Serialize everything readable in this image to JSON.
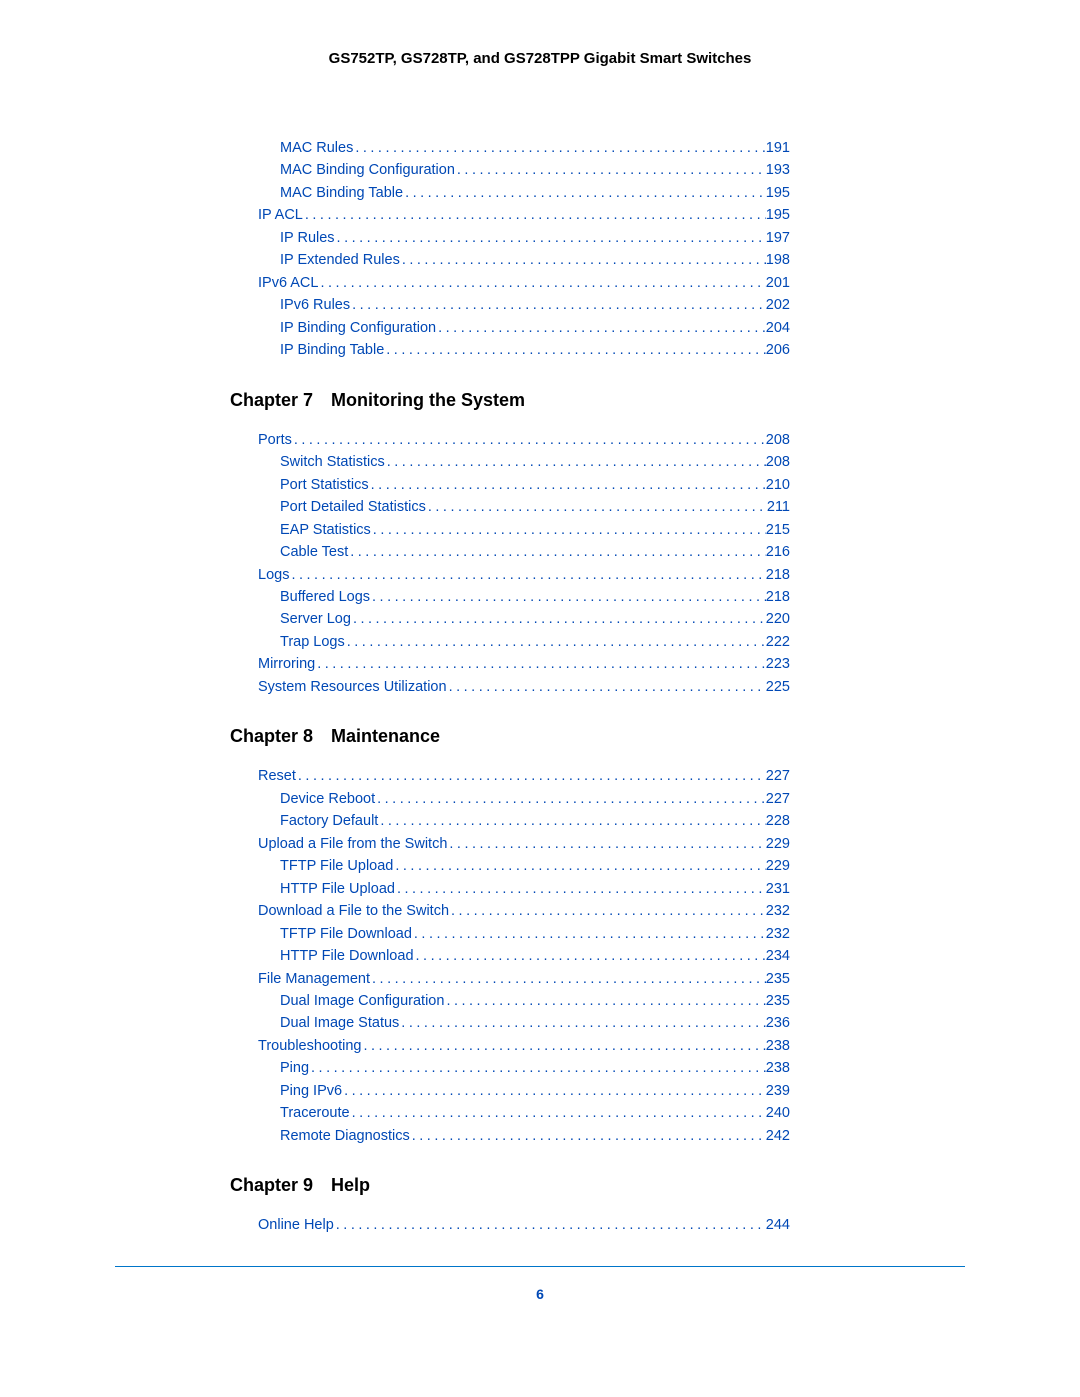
{
  "header": {
    "title": "GS752TP, GS728TP, and GS728TPP Gigabit Smart Switches"
  },
  "colors": {
    "link": "#0048b5",
    "rule": "#0075c9",
    "text": "#000000",
    "background": "#ffffff"
  },
  "pageNumber": "6",
  "sections": [
    {
      "heading": null,
      "entries": [
        {
          "level": 2,
          "label": "MAC Rules",
          "page": "191"
        },
        {
          "level": 2,
          "label": "MAC Binding Configuration",
          "page": "193"
        },
        {
          "level": 2,
          "label": "MAC Binding Table",
          "page": "195"
        },
        {
          "level": 1,
          "label": "IP ACL",
          "page": "195"
        },
        {
          "level": 2,
          "label": "IP Rules",
          "page": "197"
        },
        {
          "level": 2,
          "label": "IP Extended Rules",
          "page": "198"
        },
        {
          "level": 1,
          "label": "IPv6 ACL",
          "page": "201"
        },
        {
          "level": 2,
          "label": "IPv6 Rules",
          "page": "202"
        },
        {
          "level": 2,
          "label": "IP Binding Configuration",
          "page": "204"
        },
        {
          "level": 2,
          "label": "IP Binding Table",
          "page": "206"
        }
      ]
    },
    {
      "heading": "Chapter 7 Monitoring the System",
      "entries": [
        {
          "level": 1,
          "label": "Ports",
          "page": "208"
        },
        {
          "level": 2,
          "label": "Switch Statistics",
          "page": "208"
        },
        {
          "level": 2,
          "label": "Port Statistics",
          "page": "210"
        },
        {
          "level": 2,
          "label": "Port Detailed Statistics",
          "page": "211"
        },
        {
          "level": 2,
          "label": "EAP Statistics",
          "page": "215"
        },
        {
          "level": 2,
          "label": "Cable Test",
          "page": "216"
        },
        {
          "level": 1,
          "label": "Logs",
          "page": "218"
        },
        {
          "level": 2,
          "label": "Buffered Logs",
          "page": "218"
        },
        {
          "level": 2,
          "label": "Server Log",
          "page": "220"
        },
        {
          "level": 2,
          "label": "Trap Logs",
          "page": "222"
        },
        {
          "level": 1,
          "label": "Mirroring",
          "page": "223"
        },
        {
          "level": 1,
          "label": "System Resources Utilization",
          "page": "225"
        }
      ]
    },
    {
      "heading": "Chapter 8 Maintenance",
      "entries": [
        {
          "level": 1,
          "label": "Reset",
          "page": "227"
        },
        {
          "level": 2,
          "label": "Device Reboot",
          "page": "227"
        },
        {
          "level": 2,
          "label": "Factory Default",
          "page": "228"
        },
        {
          "level": 1,
          "label": "Upload a File from the Switch",
          "page": "229"
        },
        {
          "level": 2,
          "label": "TFTP File Upload",
          "page": "229"
        },
        {
          "level": 2,
          "label": "HTTP File Upload",
          "page": "231"
        },
        {
          "level": 1,
          "label": "Download a File to the Switch",
          "page": "232"
        },
        {
          "level": 2,
          "label": "TFTP File Download",
          "page": "232"
        },
        {
          "level": 2,
          "label": "HTTP File Download",
          "page": "234"
        },
        {
          "level": 1,
          "label": "File Management",
          "page": "235"
        },
        {
          "level": 2,
          "label": "Dual Image Configuration",
          "page": "235"
        },
        {
          "level": 2,
          "label": "Dual Image Status",
          "page": "236"
        },
        {
          "level": 1,
          "label": "Troubleshooting",
          "page": "238"
        },
        {
          "level": 2,
          "label": "Ping",
          "page": "238"
        },
        {
          "level": 2,
          "label": "Ping IPv6",
          "page": "239"
        },
        {
          "level": 2,
          "label": "Traceroute",
          "page": "240"
        },
        {
          "level": 2,
          "label": "Remote Diagnostics",
          "page": "242"
        }
      ]
    },
    {
      "heading": "Chapter 9 Help",
      "entries": [
        {
          "level": 1,
          "label": "Online Help",
          "page": "244"
        }
      ]
    }
  ]
}
